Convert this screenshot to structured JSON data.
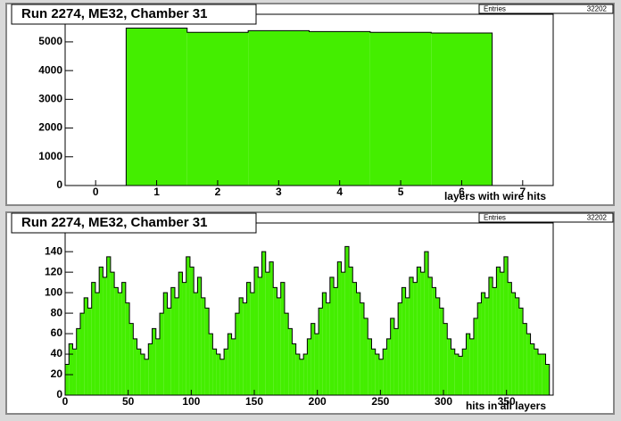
{
  "chart_data": [
    {
      "type": "histogram",
      "title": "Run 2274, ME32, Chamber 31",
      "stats": {
        "label": "Entries",
        "value": 32202
      },
      "xlabel": "layers with wire hits",
      "color": "#44ee00",
      "bins": [
        0.5,
        1.5,
        2.5,
        3.5,
        4.5,
        5.5,
        6.5
      ],
      "values": [
        5480,
        5330,
        5390,
        5360,
        5330,
        5310
      ],
      "xlim": [
        -0.5,
        7.5
      ],
      "xticks": [
        0,
        1,
        2,
        3,
        4,
        5,
        6,
        7
      ],
      "ylim": [
        0,
        5960
      ],
      "yticks": [
        0,
        1000,
        2000,
        3000,
        4000,
        5000
      ]
    },
    {
      "type": "histogram",
      "title": "Run 2274, ME32, Chamber 31",
      "stats": {
        "label": "Entries",
        "value": 32202
      },
      "xlabel": "hits in all layers",
      "color": "#44ee00",
      "bins": [
        0,
        3,
        6,
        9,
        12,
        15,
        18,
        21,
        24,
        27,
        30,
        33,
        36,
        39,
        42,
        45,
        48,
        51,
        54,
        57,
        60,
        63,
        66,
        69,
        72,
        75,
        78,
        81,
        84,
        87,
        90,
        93,
        96,
        99,
        102,
        105,
        108,
        111,
        114,
        117,
        120,
        123,
        126,
        129,
        132,
        135,
        138,
        141,
        144,
        147,
        150,
        153,
        156,
        159,
        162,
        165,
        168,
        171,
        174,
        177,
        180,
        183,
        186,
        189,
        192,
        195,
        198,
        201,
        204,
        207,
        210,
        213,
        216,
        219,
        222,
        225,
        228,
        231,
        234,
        237,
        240,
        243,
        246,
        249,
        252,
        255,
        258,
        261,
        264,
        267,
        270,
        273,
        276,
        279,
        282,
        285,
        288,
        291,
        294,
        297,
        300,
        303,
        306,
        309,
        312,
        315,
        318,
        321,
        324,
        327,
        330,
        333,
        336,
        339,
        342,
        345,
        348,
        351,
        354,
        357,
        360,
        363,
        366,
        369,
        372,
        375,
        378,
        381,
        384
      ],
      "values": [
        30,
        50,
        45,
        65,
        80,
        95,
        85,
        110,
        100,
        125,
        115,
        135,
        120,
        105,
        100,
        110,
        90,
        70,
        55,
        45,
        40,
        35,
        50,
        65,
        55,
        80,
        100,
        85,
        105,
        95,
        120,
        110,
        135,
        125,
        100,
        115,
        95,
        85,
        60,
        45,
        40,
        35,
        45,
        60,
        55,
        80,
        95,
        90,
        110,
        100,
        125,
        115,
        140,
        120,
        130,
        105,
        95,
        110,
        80,
        65,
        50,
        40,
        35,
        40,
        55,
        70,
        60,
        85,
        100,
        90,
        115,
        105,
        130,
        120,
        145,
        125,
        110,
        100,
        90,
        75,
        55,
        45,
        40,
        35,
        45,
        55,
        75,
        65,
        90,
        105,
        95,
        115,
        110,
        125,
        120,
        140,
        115,
        105,
        95,
        85,
        70,
        55,
        45,
        40,
        38,
        45,
        60,
        55,
        75,
        90,
        100,
        95,
        115,
        105,
        125,
        120,
        135,
        110,
        100,
        95,
        85,
        70,
        60,
        50,
        45,
        40,
        40,
        30
      ],
      "xlim": [
        0,
        387
      ],
      "xticks": [
        0,
        50,
        100,
        150,
        200,
        250,
        300,
        350
      ],
      "ylim": [
        0,
        168
      ],
      "yticks": [
        0,
        20,
        40,
        60,
        80,
        100,
        120,
        140
      ]
    }
  ]
}
